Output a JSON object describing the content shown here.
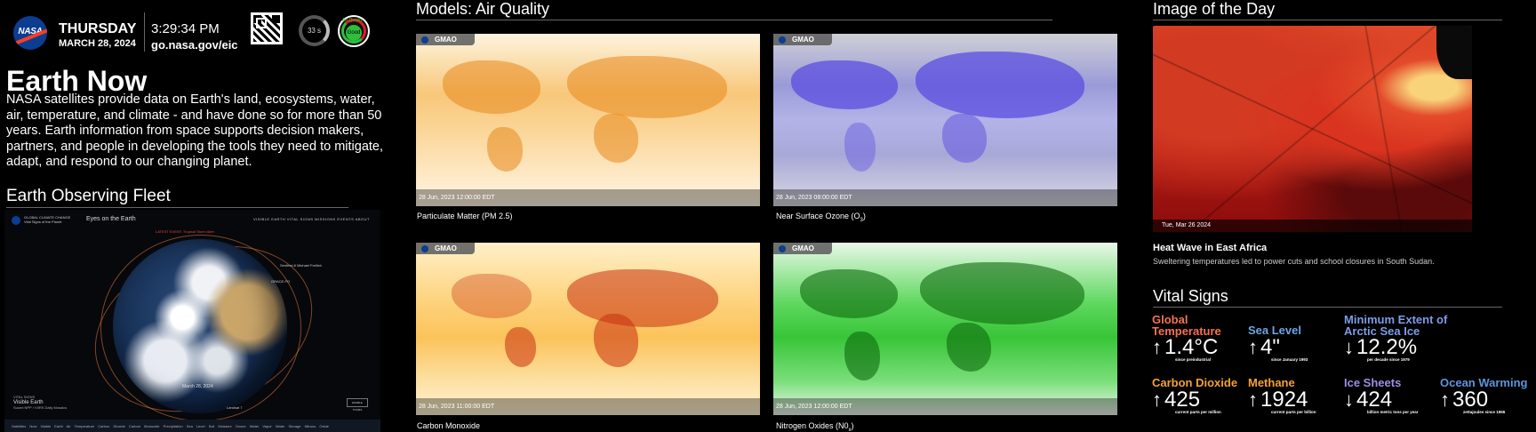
{
  "header": {
    "logo_text": "NASA",
    "day": "THURSDAY",
    "date": "MARCH 28, 2024",
    "time": "3:29:34 PM",
    "url": "go.nasa.gov/eic",
    "timer": "33 s",
    "aq_label": "Air Quality",
    "aq_status": "Good"
  },
  "intro": {
    "title": "Earth Now",
    "description": "NASA satellites provide data on Earth's land, ecosystems, water, air, temperature, and climate - and have done so for more than 50 years. Earth information from space supports decision makers, partners, and people in developing the tools they need to mitigate, adapt, and respond to our changing planet."
  },
  "fleet": {
    "title": "Earth Observing Fleet",
    "app_title": "Eyes on the Earth",
    "brand_line1": "GLOBAL CLIMATE CHANGE",
    "brand_line2": "Vital Signs of the Planet",
    "nav": "VISIBLE EARTH   VITAL SIGNS   MISSIONS   EVENTS   ABOUT",
    "red_notice": "LATEST EVENT: Tropical Storm Alert",
    "sat_1": "Sentinel-6 Michael Freilich",
    "sat_2": "GRACE-FO",
    "sat_3": "Landsat 7",
    "globe_date": "March 28, 2024",
    "vital_signs_label": "VITAL SIGNS",
    "visible_earth": "Visible Earth",
    "source": "Suomi NPP / VIIRS Daily Mosaics",
    "button": "ENABLE TOURS",
    "footer": "Satellites Now  Visible Earth  Air Temperature  Carbon Dioxide  Carbon Monoxide  Precipitation  Sea Level  Soil Moisture  Ozone  Water Vapor  Water Storage  Nitrous Oxide"
  },
  "models": {
    "title": "Models: Air Quality",
    "badge": "GMAO",
    "maps": [
      {
        "timestamp": "28 Jun, 2023 12:00:00 EDT",
        "caption": "Particulate Matter (PM 2.5)"
      },
      {
        "timestamp": "28 Jun, 2023 08:00:00 EDT",
        "caption": "Near Surface Ozone (O",
        "sub": "3",
        "suffix": ")"
      },
      {
        "timestamp": "28 Jun, 2023 11:00:00 EDT",
        "caption": "Carbon Monoxide"
      },
      {
        "timestamp": "28 Jun, 2023 12:00:00 EDT",
        "caption": "Nitrogen Oxides (N0",
        "sub": "x",
        "suffix": ")"
      }
    ]
  },
  "iotd": {
    "title": "Image of the Day",
    "date": "Tue, Mar 26 2024",
    "headline": "Heat Wave in East Africa",
    "subtitle": "Sweltering temperatures led to power cuts and school closures in South Sudan."
  },
  "vital_signs": {
    "title": "Vital Signs",
    "items": [
      {
        "label": "Global Temperature",
        "value": "1.4°C",
        "arrow": "↑",
        "sub": "since preindustrial",
        "color": "#f4724f"
      },
      {
        "label": "Sea Level",
        "value": "4\"",
        "arrow": "↑",
        "sub": "since January 1993",
        "color": "#6fa4e2"
      },
      {
        "label": "Minimum Extent of Arctic Sea Ice",
        "value": "12.2%",
        "arrow": "↓",
        "sub": "per decade since 1979",
        "color": "#7f9be6"
      },
      {
        "label": "Carbon Dioxide",
        "value": "425",
        "arrow": "↑",
        "sub": "current parts per million",
        "color": "#f5a037"
      },
      {
        "label": "Methane",
        "value": "1924",
        "arrow": "↑",
        "sub": "current parts per billion",
        "color": "#f5a037"
      },
      {
        "label": "Ice Sheets",
        "value": "424",
        "arrow": "↓",
        "sub": "billion metric tons per year",
        "color": "#9a8fe3"
      },
      {
        "label": "Ocean Warming",
        "value": "360",
        "arrow": "↑",
        "sub": "zettajoules since 1955",
        "color": "#5d95de"
      }
    ]
  }
}
